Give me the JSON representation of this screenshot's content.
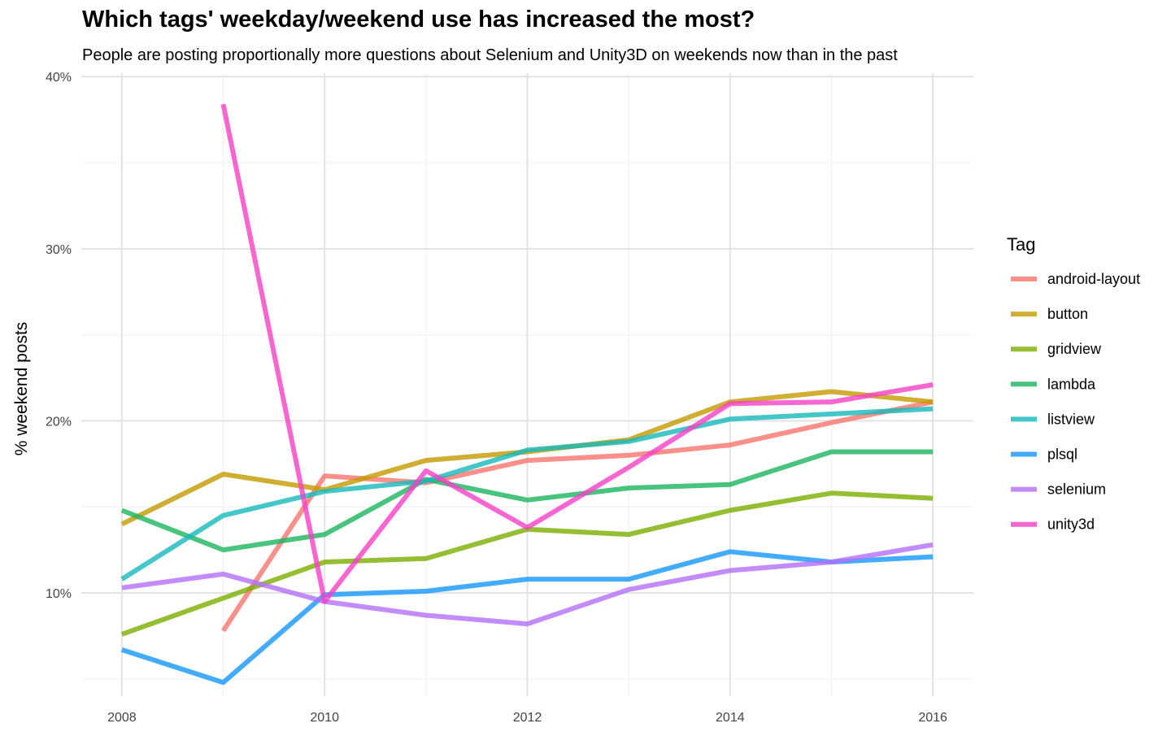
{
  "title": "Which tags' weekday/weekend use has increased the most?",
  "subtitle": "People are posting proportionally more questions about Selenium and Unity3D on weekends now than in the past",
  "chart_data": {
    "type": "line",
    "ylabel": "% weekend posts",
    "xlabel": "",
    "x_ticks": [
      "2008",
      "2010",
      "2012",
      "2014",
      "2016"
    ],
    "y_ticks": [
      "10%",
      "20%",
      "30%",
      "40%"
    ],
    "xlim": [
      2007.6,
      2016.4
    ],
    "ylim": [
      4,
      40.2
    ],
    "legend_title": "Tag",
    "legend_position": "right",
    "grid": true,
    "series": [
      {
        "name": "android-layout",
        "color": "#F8766D",
        "x": [
          2009,
          2010,
          2011,
          2012,
          2013,
          2014,
          2015,
          2016
        ],
        "values": [
          7.8,
          16.8,
          16.4,
          17.7,
          18.0,
          18.6,
          19.9,
          21.1
        ]
      },
      {
        "name": "button",
        "color": "#C49A00",
        "x": [
          2008,
          2009,
          2010,
          2011,
          2012,
          2013,
          2014,
          2015,
          2016
        ],
        "values": [
          14.0,
          16.9,
          16.0,
          17.7,
          18.2,
          18.9,
          21.1,
          21.7,
          21.1
        ]
      },
      {
        "name": "gridview",
        "color": "#7CAE00",
        "x": [
          2008,
          2009,
          2010,
          2011,
          2012,
          2013,
          2014,
          2015,
          2016
        ],
        "values": [
          7.6,
          9.7,
          11.8,
          12.0,
          13.7,
          13.4,
          14.8,
          15.8,
          15.5
        ]
      },
      {
        "name": "lambda",
        "color": "#1BB55E",
        "x": [
          2008,
          2009,
          2010,
          2011,
          2012,
          2013,
          2014,
          2015,
          2016
        ],
        "values": [
          14.8,
          12.5,
          13.4,
          16.6,
          15.4,
          16.1,
          16.3,
          18.2,
          18.2
        ]
      },
      {
        "name": "listview",
        "color": "#17B8BA",
        "x": [
          2008,
          2009,
          2010,
          2011,
          2012,
          2013,
          2014,
          2015,
          2016
        ],
        "values": [
          10.8,
          14.5,
          15.9,
          16.5,
          18.3,
          18.8,
          20.1,
          20.4,
          20.7
        ]
      },
      {
        "name": "plsql",
        "color": "#1597FF",
        "x": [
          2008,
          2009,
          2010,
          2011,
          2012,
          2013,
          2014,
          2015,
          2016
        ],
        "values": [
          6.7,
          4.8,
          9.9,
          10.1,
          10.8,
          10.8,
          12.4,
          11.8,
          12.1
        ]
      },
      {
        "name": "selenium",
        "color": "#B36FF9",
        "x": [
          2008,
          2009,
          2010,
          2011,
          2012,
          2013,
          2014,
          2015,
          2016
        ],
        "values": [
          10.3,
          11.1,
          9.5,
          8.7,
          8.2,
          10.2,
          11.3,
          11.8,
          12.8
        ]
      },
      {
        "name": "unity3d",
        "color": "#F540C5",
        "x": [
          2009,
          2010,
          2011,
          2012,
          2013,
          2014,
          2015,
          2016
        ],
        "values": [
          38.4,
          9.5,
          17.1,
          13.8,
          17.3,
          21.0,
          21.1,
          22.1
        ]
      }
    ]
  }
}
